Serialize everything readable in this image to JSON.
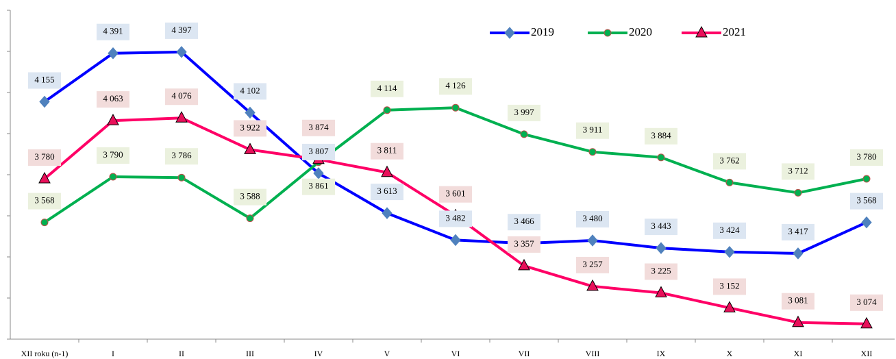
{
  "chart_data": {
    "type": "line",
    "categories": [
      "XII roku (n-1)",
      "I",
      "II",
      "III",
      "IV",
      "V",
      "VI",
      "VII",
      "VIII",
      "IX",
      "X",
      "XI",
      "XII"
    ],
    "ylim": [
      3000,
      4600
    ],
    "yticks": [
      3000,
      3200,
      3400,
      3600,
      3800,
      4000,
      4200,
      4400,
      4600
    ],
    "legend": "top-right",
    "series": [
      {
        "name": "2019",
        "color": "#0000ff",
        "marker_color": "#4f81bd",
        "label_bg": "#dce6f2",
        "marker": "diamond",
        "values": [
          4155,
          4391,
          4397,
          4102,
          3807,
          3613,
          3482,
          3466,
          3480,
          3443,
          3424,
          3417,
          3568
        ],
        "value_labels": [
          "4 155",
          "4 391",
          "4 397",
          "4 102",
          "3 807",
          "3 613",
          "3 482",
          "3 466",
          "3 480",
          "3 443",
          "3 424",
          "3 417",
          "3 568"
        ]
      },
      {
        "name": "2020",
        "color": "#00b050",
        "marker_color": "#00b050",
        "label_bg": "#ebf1de",
        "marker": "circle",
        "values": [
          3568,
          3790,
          3786,
          3588,
          3861,
          4114,
          4126,
          3997,
          3911,
          3884,
          3762,
          3712,
          3780
        ],
        "value_labels": [
          "3 568",
          "3 790",
          "3 786",
          "3 588",
          "3 861",
          "4 114",
          "4 126",
          "3 997",
          "3 911",
          "3 884",
          "3 762",
          "3 712",
          "3 780"
        ]
      },
      {
        "name": "2021",
        "color": "#ff0066",
        "marker_color": "#e8105a",
        "label_bg": "#f2dcdb",
        "marker": "triangle",
        "values": [
          3780,
          4063,
          4076,
          3922,
          3874,
          3811,
          3601,
          3357,
          3257,
          3225,
          3152,
          3081,
          3074
        ],
        "value_labels": [
          "3 780",
          "4 063",
          "4 076",
          "3 922",
          "3 874",
          "3 811",
          "3 601",
          "3 357",
          "3 257",
          "3 225",
          "3 152",
          "3 081",
          "3 074"
        ]
      }
    ]
  }
}
